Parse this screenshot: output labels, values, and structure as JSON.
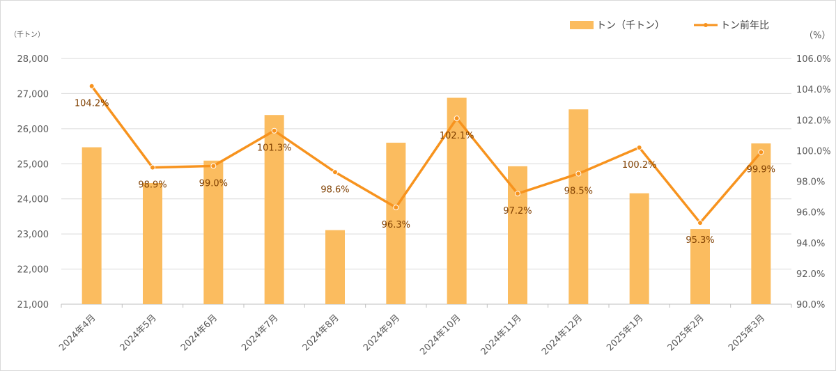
{
  "chart_data": {
    "type": "bar",
    "left_unit": "（千トン）",
    "right_unit": "（%）",
    "categories": [
      "2024年4月",
      "2024年5月",
      "2024年6月",
      "2024年7月",
      "2024年8月",
      "2024年9月",
      "2024年10月",
      "2024年11月",
      "2024年12月",
      "2025年1月",
      "2025年2月",
      "2025年3月"
    ],
    "series": [
      {
        "name": "トン（千トン）",
        "type": "bar",
        "axis": "left",
        "color": "#fbbc5f",
        "values": [
          25470,
          24450,
          25090,
          26390,
          23110,
          25600,
          26880,
          24930,
          26550,
          24160,
          23140,
          25580
        ]
      },
      {
        "name": "トン前年比",
        "type": "line",
        "axis": "right",
        "color": "#f7931e",
        "values": [
          104.2,
          98.9,
          99.0,
          101.3,
          98.6,
          96.3,
          102.1,
          97.2,
          98.5,
          100.2,
          95.3,
          99.9
        ],
        "labels": [
          "104.2%",
          "98.9%",
          "99.0%",
          "101.3%",
          "98.6%",
          "96.3%",
          "102.1%",
          "97.2%",
          "98.5%",
          "100.2%",
          "95.3%",
          "99.9%"
        ]
      }
    ],
    "y_left": {
      "min": 21000,
      "max": 28000,
      "step": 1000,
      "ticks": [
        "21,000",
        "22,000",
        "23,000",
        "24,000",
        "25,000",
        "26,000",
        "27,000",
        "28,000"
      ]
    },
    "y_right": {
      "min": 90,
      "max": 106,
      "step": 2,
      "ticks": [
        "90.0%",
        "92.0%",
        "94.0%",
        "96.0%",
        "98.0%",
        "100.0%",
        "102.0%",
        "104.0%",
        "106.0%"
      ]
    },
    "grid": true,
    "legend_position": "top-right"
  }
}
